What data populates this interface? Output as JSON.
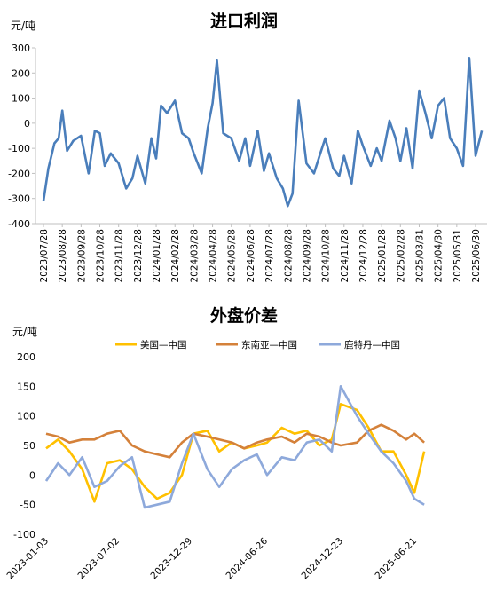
{
  "chart_data": [
    {
      "type": "line",
      "title": "进口利润",
      "ylabel": "元/吨",
      "ylim": [
        -400,
        300
      ],
      "yticks": [
        300,
        200,
        100,
        0,
        -100,
        -200,
        -300,
        -400
      ],
      "grid": false,
      "legend": "none",
      "x_tick_labels": [
        "2023/07/28",
        "2023/08/28",
        "2023/09/28",
        "2023/10/28",
        "2023/11/28",
        "2023/12/28",
        "2024/01/28",
        "2024/02/28",
        "2024/03/28",
        "2024/04/28",
        "2024/05/28",
        "2024/06/28",
        "2024/07/28",
        "2024/08/28",
        "2024/09/28",
        "2024/10/28",
        "2024/11/28",
        "2024/12/28",
        "2025/01/28",
        "2025/02/28",
        "2025/03/31",
        "2025/04/30",
        "2025/05/31",
        "2025/06/30"
      ],
      "series": [
        {
          "color": "#4a7ebb",
          "x": [
            "2023-07-28",
            "2023-08-05",
            "2023-08-15",
            "2023-08-22",
            "2023-08-28",
            "2023-09-05",
            "2023-09-15",
            "2023-09-28",
            "2023-10-10",
            "2023-10-20",
            "2023-10-28",
            "2023-11-05",
            "2023-11-15",
            "2023-11-28",
            "2023-12-10",
            "2023-12-20",
            "2023-12-28",
            "2024-01-10",
            "2024-01-20",
            "2024-01-28",
            "2024-02-05",
            "2024-02-15",
            "2024-02-28",
            "2024-03-10",
            "2024-03-20",
            "2024-03-28",
            "2024-04-10",
            "2024-04-20",
            "2024-04-28",
            "2024-05-05",
            "2024-05-15",
            "2024-05-28",
            "2024-06-10",
            "2024-06-20",
            "2024-06-28",
            "2024-07-10",
            "2024-07-20",
            "2024-07-28",
            "2024-08-10",
            "2024-08-20",
            "2024-08-28",
            "2024-09-05",
            "2024-09-15",
            "2024-09-28",
            "2024-10-10",
            "2024-10-20",
            "2024-10-28",
            "2024-11-10",
            "2024-11-20",
            "2024-11-28",
            "2024-12-10",
            "2024-12-20",
            "2024-12-28",
            "2025-01-10",
            "2025-01-20",
            "2025-01-28",
            "2025-02-10",
            "2025-02-20",
            "2025-02-28",
            "2025-03-10",
            "2025-03-20",
            "2025-03-31",
            "2025-04-10",
            "2025-04-20",
            "2025-04-30",
            "2025-05-10",
            "2025-05-20",
            "2025-05-31",
            "2025-06-10",
            "2025-06-20",
            "2025-06-30",
            "2025-07-10"
          ],
          "values": [
            -310,
            -180,
            -80,
            -60,
            50,
            -110,
            -70,
            -50,
            -200,
            -30,
            -40,
            -170,
            -120,
            -160,
            -260,
            -220,
            -130,
            -240,
            -60,
            -140,
            70,
            40,
            90,
            -40,
            -60,
            -120,
            -200,
            -20,
            80,
            250,
            -40,
            -60,
            -150,
            -60,
            -170,
            -30,
            -190,
            -120,
            -220,
            -260,
            -330,
            -280,
            90,
            -160,
            -200,
            -120,
            -60,
            -180,
            -210,
            -130,
            -240,
            -30,
            -90,
            -170,
            -100,
            -150,
            10,
            -60,
            -150,
            -20,
            -180,
            130,
            40,
            -60,
            70,
            100,
            -60,
            -100,
            -170,
            260,
            -130,
            -30
          ]
        }
      ]
    },
    {
      "type": "line",
      "title": "外盘价差",
      "ylabel": "元/吨",
      "ylim": [
        -100,
        200
      ],
      "yticks": [
        200,
        150,
        100,
        50,
        0,
        -50,
        -100
      ],
      "grid": false,
      "legend": "top",
      "x_tick_labels": [
        "2023-01-03",
        "2023-07-02",
        "2023-12-29",
        "2024-06-26",
        "2024-12-23",
        "2025-06-21"
      ],
      "series": [
        {
          "name": "美国—中国",
          "color": "#ffc000",
          "x": [
            "2023-01-03",
            "2023-02-01",
            "2023-03-01",
            "2023-04-01",
            "2023-05-01",
            "2023-06-01",
            "2023-07-02",
            "2023-08-01",
            "2023-09-01",
            "2023-10-01",
            "2023-11-01",
            "2023-12-01",
            "2023-12-29",
            "2024-02-01",
            "2024-03-01",
            "2024-04-01",
            "2024-05-01",
            "2024-06-01",
            "2024-06-26",
            "2024-08-01",
            "2024-09-01",
            "2024-10-01",
            "2024-11-01",
            "2024-12-01",
            "2024-12-23",
            "2025-02-01",
            "2025-03-01",
            "2025-04-01",
            "2025-05-01",
            "2025-06-01",
            "2025-06-21",
            "2025-07-15"
          ],
          "values": [
            45,
            60,
            40,
            10,
            -45,
            20,
            25,
            10,
            -20,
            -40,
            -30,
            0,
            70,
            75,
            40,
            55,
            45,
            50,
            55,
            80,
            70,
            75,
            50,
            60,
            120,
            110,
            80,
            40,
            40,
            0,
            -30,
            40
          ]
        },
        {
          "name": "东南亚—中国",
          "color": "#d4813a",
          "x": [
            "2023-01-03",
            "2023-02-01",
            "2023-03-01",
            "2023-04-01",
            "2023-05-01",
            "2023-06-01",
            "2023-07-02",
            "2023-08-01",
            "2023-09-01",
            "2023-10-01",
            "2023-11-01",
            "2023-12-01",
            "2023-12-29",
            "2024-02-01",
            "2024-03-01",
            "2024-04-01",
            "2024-05-01",
            "2024-06-01",
            "2024-06-26",
            "2024-08-01",
            "2024-09-01",
            "2024-10-01",
            "2024-11-01",
            "2024-12-01",
            "2024-12-23",
            "2025-02-01",
            "2025-03-01",
            "2025-04-01",
            "2025-05-01",
            "2025-06-01",
            "2025-06-21",
            "2025-07-15"
          ],
          "values": [
            70,
            65,
            55,
            60,
            60,
            70,
            75,
            50,
            40,
            35,
            30,
            55,
            70,
            65,
            60,
            55,
            45,
            55,
            60,
            65,
            55,
            70,
            65,
            55,
            50,
            55,
            75,
            85,
            75,
            60,
            70,
            55
          ]
        },
        {
          "name": "鹿特丹—中国",
          "color": "#8ea9db",
          "x": [
            "2023-01-03",
            "2023-02-01",
            "2023-03-01",
            "2023-04-01",
            "2023-05-01",
            "2023-06-01",
            "2023-07-02",
            "2023-08-01",
            "2023-09-01",
            "2023-10-01",
            "2023-11-01",
            "2023-12-01",
            "2023-12-29",
            "2024-02-01",
            "2024-03-01",
            "2024-04-01",
            "2024-05-01",
            "2024-06-01",
            "2024-06-26",
            "2024-08-01",
            "2024-09-01",
            "2024-10-01",
            "2024-11-01",
            "2024-12-01",
            "2024-12-23",
            "2025-02-01",
            "2025-03-01",
            "2025-04-01",
            "2025-05-01",
            "2025-06-01",
            "2025-06-21",
            "2025-07-15"
          ],
          "values": [
            -10,
            20,
            0,
            30,
            -20,
            -10,
            15,
            30,
            -55,
            -50,
            -45,
            20,
            70,
            10,
            -20,
            10,
            25,
            35,
            0,
            30,
            25,
            55,
            60,
            40,
            150,
            100,
            70,
            40,
            20,
            -10,
            -40,
            -50
          ]
        }
      ]
    }
  ]
}
